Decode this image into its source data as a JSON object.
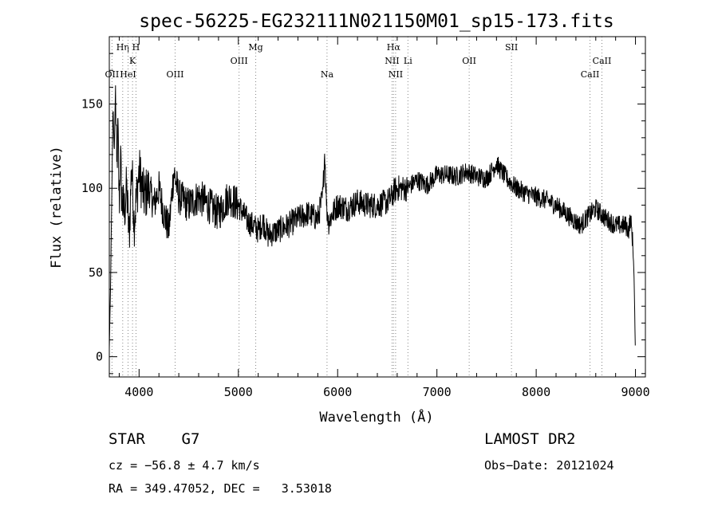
{
  "chart_data": {
    "type": "line",
    "title": "spec-56225-EG232111N021150M01_sp15-173.fits",
    "xlabel": "Wavelength (Å)",
    "ylabel": "Flux (relative)",
    "xlim": [
      3700,
      9100
    ],
    "ylim": [
      -12,
      190
    ],
    "xticks": [
      4000,
      5000,
      6000,
      7000,
      8000,
      9000
    ],
    "yticks": [
      0,
      50,
      100,
      150
    ],
    "grid": false,
    "line_color": "#000000",
    "marker_color": "#888888",
    "line_markers": [
      {
        "label": "OII",
        "wavelength": 3727,
        "row": 3
      },
      {
        "label": "Hη",
        "wavelength": 3835,
        "row": 1
      },
      {
        "label": "H",
        "wavelength": 3969,
        "row": 1
      },
      {
        "label": "K",
        "wavelength": 3934,
        "row": 2
      },
      {
        "label": "HeI",
        "wavelength": 3889,
        "row": 3
      },
      {
        "label": "OIII",
        "wavelength": 4363,
        "row": 3
      },
      {
        "label": "OIII",
        "wavelength": 5007,
        "row": 2
      },
      {
        "label": "Mg",
        "wavelength": 5175,
        "row": 1
      },
      {
        "label": "Na",
        "wavelength": 5893,
        "row": 3
      },
      {
        "label": "Hα",
        "wavelength": 6563,
        "row": 1
      },
      {
        "label": "NII",
        "wavelength": 6548,
        "row": 2
      },
      {
        "label": "NII",
        "wavelength": 6584,
        "row": 3
      },
      {
        "label": "Li",
        "wavelength": 6708,
        "row": 2
      },
      {
        "label": "OII",
        "wavelength": 7325,
        "row": 2
      },
      {
        "label": "SII",
        "wavelength": 7751,
        "row": 1
      },
      {
        "label": "CaII",
        "wavelength": 8662,
        "row": 2
      },
      {
        "label": "CaII",
        "wavelength": 8542,
        "row": 3
      }
    ],
    "series": [
      {
        "x": [
          3700,
          3712,
          3725,
          3737,
          3750,
          3762,
          3775,
          3787,
          3800,
          3812,
          3825,
          3850,
          3875,
          3900,
          3925,
          3950,
          3975,
          4000,
          4050,
          4100,
          4150,
          4200,
          4250,
          4300,
          4350,
          4400,
          4500,
          4600,
          4700,
          4800,
          4900,
          5000,
          5050,
          5100,
          5150,
          5200,
          5250,
          5300,
          5400,
          5500,
          5600,
          5700,
          5800,
          5850,
          5870,
          5890,
          5910,
          5950,
          6000,
          6100,
          6200,
          6300,
          6400,
          6500,
          6550,
          6563,
          6600,
          6700,
          6800,
          6900,
          7000,
          7100,
          7200,
          7300,
          7400,
          7500,
          7550,
          7600,
          7625,
          7650,
          7700,
          7800,
          7900,
          8000,
          8100,
          8200,
          8300,
          8400,
          8450,
          8500,
          8600,
          8700,
          8800,
          8900,
          8930,
          8950,
          8970,
          8985,
          9000
        ],
        "y": [
          5,
          40,
          95,
          150,
          120,
          160,
          110,
          135,
          90,
          120,
          95,
          85,
          100,
          70,
          115,
          80,
          95,
          110,
          95,
          100,
          90,
          100,
          85,
          75,
          110,
          95,
          90,
          95,
          90,
          85,
          95,
          90,
          85,
          80,
          78,
          75,
          80,
          72,
          75,
          78,
          82,
          85,
          82,
          95,
          122,
          88,
          80,
          85,
          90,
          88,
          92,
          90,
          90,
          92,
          95,
          98,
          100,
          100,
          105,
          102,
          108,
          108,
          107,
          110,
          107,
          106,
          110,
          115,
          112,
          110,
          106,
          100,
          97,
          95,
          93,
          90,
          85,
          80,
          78,
          82,
          88,
          82,
          78,
          78,
          75,
          82,
          70,
          50,
          0
        ]
      }
    ]
  },
  "info": {
    "left_line1": "STAR    G7",
    "left_line2": "cz = −56.8 ± 4.7 km/s",
    "left_line3": "RA = 349.47052, DEC =   3.53018",
    "right_line1": "LAMOST DR2",
    "right_line2": "Obs−Date: 20121024"
  }
}
